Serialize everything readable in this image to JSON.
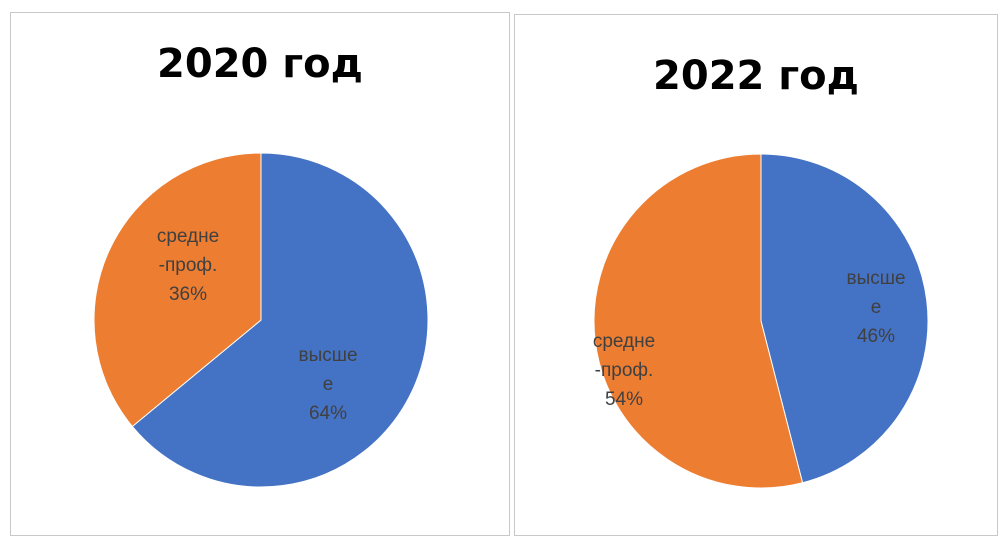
{
  "chart_data": [
    {
      "type": "pie",
      "title": "2020 год",
      "slices": [
        {
          "name": "высше е",
          "label_lines": [
            "высше",
            "е",
            "64%"
          ],
          "value": 64,
          "color": "#4472C4"
        },
        {
          "name": "средне -проф.",
          "label_lines": [
            "средне",
            "-проф.",
            "36%"
          ],
          "value": 36,
          "color": "#ED7D31"
        }
      ]
    },
    {
      "type": "pie",
      "title": "2022 год",
      "slices": [
        {
          "name": "высше е",
          "label_lines": [
            "высше",
            "е",
            "46%"
          ],
          "value": 46,
          "color": "#4472C4"
        },
        {
          "name": "средне -проф.",
          "label_lines": [
            "средне",
            "-проф.",
            "54%"
          ],
          "value": 54,
          "color": "#ED7D31"
        }
      ]
    }
  ]
}
